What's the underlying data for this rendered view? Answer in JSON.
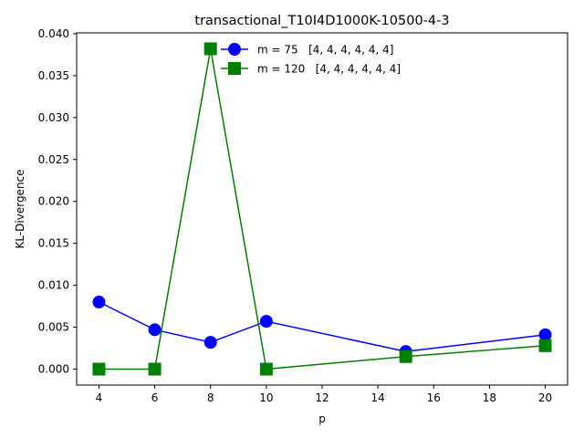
{
  "chart_data": {
    "type": "line",
    "title": "transactional_T10I4D1000K-10500-4-3",
    "xlabel": "p",
    "ylabel": "KL-Divergence",
    "xlim": [
      3.2,
      20.8
    ],
    "ylim": [
      -0.0019,
      0.0401
    ],
    "xticks": [
      4,
      6,
      8,
      10,
      12,
      14,
      16,
      18,
      20
    ],
    "yticks": [
      0.0,
      0.005,
      0.01,
      0.015,
      0.02,
      0.025,
      0.03,
      0.035,
      0.04
    ],
    "ytick_labels": [
      "0.000",
      "0.005",
      "0.010",
      "0.015",
      "0.020",
      "0.025",
      "0.030",
      "0.035",
      "0.040"
    ],
    "grid": false,
    "legend_position": "top-center",
    "series": [
      {
        "name": "m = 75   [4, 4, 4, 4, 4, 4]",
        "color": "#0000ff",
        "marker": "circle",
        "x": [
          4,
          6,
          8,
          10,
          15,
          20
        ],
        "y": [
          0.008,
          0.0047,
          0.0032,
          0.0057,
          0.0021,
          0.0041
        ]
      },
      {
        "name": "m = 120   [4, 4, 4, 4, 4, 4]",
        "color": "#008000",
        "marker": "square",
        "x": [
          4,
          6,
          8,
          10,
          15,
          20
        ],
        "y": [
          0.0,
          0.0,
          0.0382,
          0.0,
          0.0015,
          0.0028
        ]
      }
    ]
  }
}
